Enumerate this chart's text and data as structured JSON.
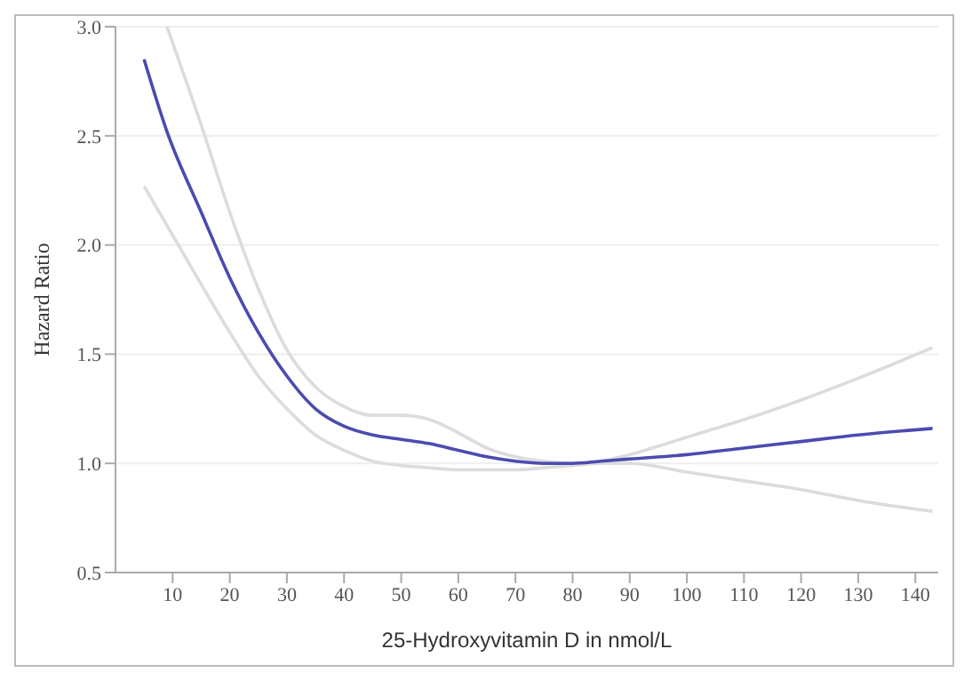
{
  "chart_data": {
    "type": "line",
    "xlabel": "25-Hydroxyvitamin D in nmol/L",
    "ylabel": "Hazard Ratio",
    "x": [
      5,
      9,
      15,
      20,
      25,
      30,
      35,
      40,
      45,
      50,
      55,
      60,
      65,
      70,
      75,
      80,
      85,
      90,
      100,
      110,
      120,
      130,
      143
    ],
    "series": [
      {
        "color": "#dcdcdc",
        "values": [
          2.27,
          2.09,
          1.82,
          1.6,
          1.4,
          1.25,
          1.13,
          1.06,
          1.01,
          0.99,
          0.98,
          0.97,
          0.97,
          0.97,
          0.98,
          0.99,
          1.0,
          1.0,
          0.96,
          0.92,
          0.88,
          0.83,
          0.78
        ]
      },
      {
        "color": "#dcdcdc",
        "values": [
          null,
          3.0,
          2.55,
          2.15,
          1.8,
          1.52,
          1.35,
          1.26,
          1.22,
          1.22,
          1.2,
          1.14,
          1.07,
          1.03,
          1.01,
          1.0,
          1.01,
          1.04,
          1.12,
          1.2,
          1.29,
          1.39,
          1.53
        ]
      },
      {
        "color": "#4b4bb0",
        "values": [
          2.85,
          2.52,
          2.15,
          1.85,
          1.6,
          1.4,
          1.25,
          1.17,
          1.13,
          1.11,
          1.09,
          1.06,
          1.03,
          1.01,
          1.0,
          1.0,
          1.01,
          1.02,
          1.04,
          1.07,
          1.1,
          1.13,
          1.16
        ]
      }
    ],
    "xlim": [
      0,
      144
    ],
    "xticks": [
      10,
      20,
      30,
      40,
      50,
      60,
      70,
      80,
      90,
      100,
      110,
      120,
      130,
      140
    ],
    "ylim": [
      0.5,
      3.0
    ],
    "yticks": [
      {
        "value": 0.5,
        "label": "0.5"
      },
      {
        "value": 1,
        "label": "1.0"
      },
      {
        "value": 1.5,
        "label": "1.5"
      },
      {
        "value": 2,
        "label": "2.0"
      },
      {
        "value": 2.5,
        "label": "2.5"
      },
      {
        "value": 3,
        "label": "3.0"
      }
    ],
    "grid": "y",
    "legend": false,
    "marker": "none",
    "line_style": "solid"
  }
}
